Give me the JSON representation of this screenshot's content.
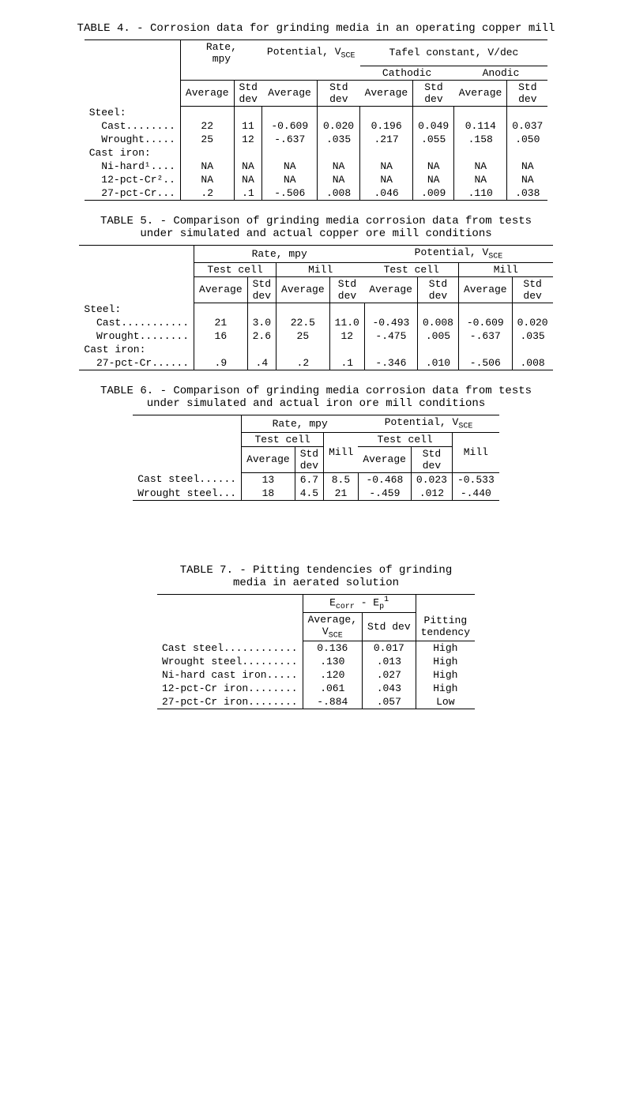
{
  "table4": {
    "title": "TABLE 4. - Corrosion data for grinding media in an operating copper mill",
    "h_rate": "Rate,\nmpy",
    "h_pot": "Potential,\nV",
    "h_pot_sub": "SCE",
    "h_tafel": "Tafel constant, V/dec",
    "h_cath": "Cathodic",
    "h_anod": "Anodic",
    "h_avg": "Average",
    "h_std": "Std\ndev",
    "rows": [
      {
        "label": "Steel:",
        "vals": [
          "",
          "",
          "",
          "",
          "",
          "",
          "",
          ""
        ]
      },
      {
        "label": "  Cast........",
        "vals": [
          "22",
          "11",
          "-0.609",
          "0.020",
          "0.196",
          "0.049",
          "0.114",
          "0.037"
        ]
      },
      {
        "label": "  Wrought.....",
        "vals": [
          "25",
          "12",
          "-.637",
          ".035",
          ".217",
          ".055",
          ".158",
          ".050"
        ]
      },
      {
        "label": "Cast iron:",
        "vals": [
          "",
          "",
          "",
          "",
          "",
          "",
          "",
          ""
        ]
      },
      {
        "label": "  Ni-hard¹....",
        "vals": [
          "NA",
          "NA",
          "NA",
          "NA",
          "NA",
          "NA",
          "NA",
          "NA"
        ]
      },
      {
        "label": "  12-pct-Cr²..",
        "vals": [
          "NA",
          "NA",
          "NA",
          "NA",
          "NA",
          "NA",
          "NA",
          "NA"
        ]
      },
      {
        "label": "  27-pct-Cr...",
        "vals": [
          ".2",
          ".1",
          "-.506",
          ".008",
          ".046",
          ".009",
          ".110",
          ".038"
        ]
      }
    ]
  },
  "table5": {
    "title": "TABLE 5. - Comparison of grinding media corrosion data from tests\nunder simulated and actual copper ore mill conditions",
    "h_rate": "Rate, mpy",
    "h_pot": "Potential, V",
    "h_pot_sub": "SCE",
    "h_test": "Test cell",
    "h_mill": "Mill",
    "h_avg": "Average",
    "h_std": "Std\ndev",
    "rows": [
      {
        "label": "Steel:",
        "vals": [
          "",
          "",
          "",
          "",
          "",
          "",
          "",
          ""
        ]
      },
      {
        "label": "  Cast...........",
        "vals": [
          "21",
          "3.0",
          "22.5",
          "11.0",
          "-0.493",
          "0.008",
          "-0.609",
          "0.020"
        ]
      },
      {
        "label": "  Wrought........",
        "vals": [
          "16",
          "2.6",
          "25",
          "12",
          "-.475",
          ".005",
          "-.637",
          ".035"
        ]
      },
      {
        "label": "Cast iron:",
        "vals": [
          "",
          "",
          "",
          "",
          "",
          "",
          "",
          ""
        ]
      },
      {
        "label": "  27-pct-Cr......",
        "vals": [
          ".9",
          ".4",
          ".2",
          ".1",
          "-.346",
          ".010",
          "-.506",
          ".008"
        ]
      }
    ]
  },
  "table6": {
    "title": "TABLE 6. - Comparison of grinding media corrosion data from tests\nunder simulated and actual iron ore mill conditions",
    "h_rate": "Rate, mpy",
    "h_pot": "Potential, V",
    "h_pot_sub": "SCE",
    "h_test": "Test cell",
    "h_mill": "Mill",
    "h_avg": "Average",
    "h_std": "Std\ndev",
    "rows": [
      {
        "label": "Cast steel......",
        "vals": [
          "13",
          "6.7",
          "8.5",
          "-0.468",
          "0.023",
          "-0.533"
        ]
      },
      {
        "label": "Wrought steel...",
        "vals": [
          "18",
          "4.5",
          "21",
          "-.459",
          ".012",
          "-.440"
        ]
      }
    ]
  },
  "table7": {
    "title": "TABLE 7. - Pitting tendencies of grinding\nmedia in aerated solution",
    "h_diff": "E",
    "h_diff_sub1": "corr",
    "h_diff_mid": " - E",
    "h_diff_sub2": "p",
    "h_diff_sup": "1",
    "h_avg": "Average,\nV",
    "h_avg_sub": "SCE",
    "h_std": "Std dev",
    "h_pit": "Pitting\ntendency",
    "rows": [
      {
        "label": "Cast steel............",
        "vals": [
          "0.136",
          "0.017",
          "High"
        ]
      },
      {
        "label": "Wrought steel.........",
        "vals": [
          ".130",
          ".013",
          "High"
        ]
      },
      {
        "label": "Ni-hard cast iron.....",
        "vals": [
          ".120",
          ".027",
          "High"
        ]
      },
      {
        "label": "12-pct-Cr iron........",
        "vals": [
          ".061",
          ".043",
          "High"
        ]
      },
      {
        "label": "27-pct-Cr iron........",
        "vals": [
          "-.884",
          ".057",
          "Low"
        ]
      }
    ]
  }
}
